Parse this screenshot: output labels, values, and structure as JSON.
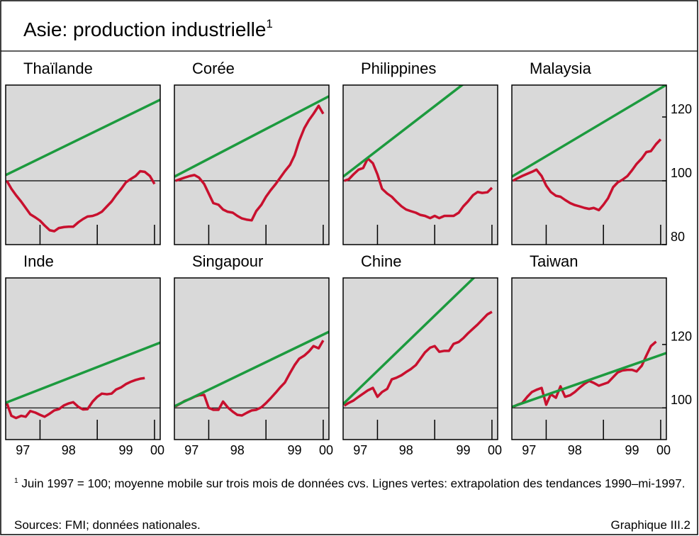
{
  "title": "Asie: production industrielle",
  "title_note": "1",
  "footnote_marker": "1",
  "footnote": "Juin 1997 = 100; moyenne mobile sur trois mois de données cvs. Lignes vertes: extrapolation des tendances 1990–mi-1997.",
  "sources": "Sources: FMI; données nationales.",
  "figure_label": "Graphique III.2",
  "chart_data": [
    {
      "type": "line",
      "title": "Thaïlande",
      "xlim": [
        1997.4,
        2000.1
      ],
      "xticks": [
        1998,
        1999,
        2000
      ],
      "ylim": [
        80,
        130
      ],
      "reference_line": 100,
      "x": [
        1997.42,
        1997.5,
        1997.58,
        1997.67,
        1997.75,
        1997.83,
        1997.92,
        1998.0,
        1998.08,
        1998.17,
        1998.25,
        1998.33,
        1998.42,
        1998.5,
        1998.58,
        1998.67,
        1998.75,
        1998.83,
        1998.92,
        1999.0,
        1999.08,
        1999.17,
        1999.25,
        1999.33,
        1999.42,
        1999.5,
        1999.58,
        1999.67,
        1999.75,
        1999.83,
        1999.92,
        2000.0
      ],
      "series": [
        {
          "color": "#c8102e",
          "values": [
            100,
            97.5,
            95.5,
            93.5,
            91.5,
            89.5,
            88.5,
            87.5,
            86,
            84.5,
            84.2,
            85.2,
            85.5,
            85.6,
            85.6,
            87,
            88,
            88.8,
            89,
            89.5,
            90.3,
            92,
            93.5,
            95.5,
            97.5,
            99.5,
            100.5,
            101.5,
            103,
            102.8,
            101.5,
            99
          ]
        },
        {
          "color": "#1c9a3e",
          "x": [
            1997.4,
            2000.1
          ],
          "values": [
            101.8,
            125.4
          ]
        }
      ]
    },
    {
      "type": "line",
      "title": "Corée",
      "xlim": [
        1997.4,
        2000.1
      ],
      "xticks": [
        1998,
        1999,
        2000
      ],
      "ylim": [
        80,
        130
      ],
      "reference_line": 100,
      "x": [
        1997.42,
        1997.5,
        1997.58,
        1997.67,
        1997.75,
        1997.83,
        1997.92,
        1998.0,
        1998.08,
        1998.17,
        1998.25,
        1998.33,
        1998.42,
        1998.5,
        1998.58,
        1998.67,
        1998.75,
        1998.83,
        1998.92,
        1999.0,
        1999.08,
        1999.17,
        1999.25,
        1999.33,
        1999.42,
        1999.5,
        1999.58,
        1999.67,
        1999.75,
        1999.83,
        1999.92,
        2000.0
      ],
      "series": [
        {
          "color": "#c8102e",
          "values": [
            100,
            100.5,
            101,
            101.5,
            101.8,
            101,
            99,
            96,
            93,
            92.5,
            91,
            90.3,
            90,
            89,
            88.2,
            87.8,
            87.6,
            90.5,
            92.5,
            95,
            97,
            99,
            101,
            103,
            105,
            108,
            112.5,
            116.5,
            119,
            121,
            123.5,
            121
          ]
        },
        {
          "color": "#1c9a3e",
          "x": [
            1997.4,
            2000.1
          ],
          "values": [
            101.3,
            126.5
          ]
        }
      ]
    },
    {
      "type": "line",
      "title": "Philippines",
      "xlim": [
        1997.4,
        2000.1
      ],
      "xticks": [
        1998,
        1999,
        2000
      ],
      "ylim": [
        80,
        130
      ],
      "reference_line": 100,
      "x": [
        1997.42,
        1997.5,
        1997.58,
        1997.67,
        1997.75,
        1997.83,
        1997.92,
        1998.0,
        1998.08,
        1998.17,
        1998.25,
        1998.33,
        1998.42,
        1998.5,
        1998.58,
        1998.67,
        1998.75,
        1998.83,
        1998.92,
        1999.0,
        1999.08,
        1999.17,
        1999.25,
        1999.33,
        1999.42,
        1999.5,
        1999.58,
        1999.67,
        1999.75,
        1999.83,
        1999.92,
        2000.0
      ],
      "series": [
        {
          "color": "#c8102e",
          "values": [
            100,
            100.5,
            102,
            103.5,
            104,
            107,
            105.5,
            102,
            97.5,
            96,
            95,
            93.5,
            92,
            91,
            90.5,
            90,
            89.3,
            89,
            88.3,
            89,
            88.3,
            89,
            89,
            89,
            90,
            92,
            93.5,
            95.5,
            96.5,
            96.2,
            96.4,
            97.8
          ]
        },
        {
          "color": "#1c9a3e",
          "x": [
            1997.4,
            2000.1
          ],
          "values": [
            101.3,
            138.6
          ]
        }
      ]
    },
    {
      "type": "line",
      "title": "Malaysia",
      "xlim": [
        1997.4,
        2000.1
      ],
      "xticks": [
        1998,
        1999,
        2000
      ],
      "ylim": [
        80,
        130
      ],
      "yticks": [
        80,
        100,
        120
      ],
      "reference_line": 100,
      "x": [
        1997.42,
        1997.5,
        1997.58,
        1997.67,
        1997.75,
        1997.83,
        1997.92,
        1998.0,
        1998.08,
        1998.17,
        1998.25,
        1998.33,
        1998.42,
        1998.5,
        1998.58,
        1998.67,
        1998.75,
        1998.83,
        1998.92,
        1999.0,
        1999.08,
        1999.17,
        1999.25,
        1999.33,
        1999.42,
        1999.5,
        1999.58,
        1999.67,
        1999.75,
        1999.83,
        1999.92,
        2000.0
      ],
      "series": [
        {
          "color": "#c8102e",
          "values": [
            100,
            100.8,
            101.5,
            102.2,
            102.8,
            103.5,
            101.5,
            98.5,
            96.5,
            95.3,
            95,
            94,
            93,
            92.4,
            92,
            91.5,
            91.2,
            91.5,
            90.8,
            92.5,
            94.5,
            98,
            99.5,
            100.3,
            101.5,
            103.3,
            105.3,
            107,
            109,
            109.3,
            111.5,
            113
          ]
        },
        {
          "color": "#1c9a3e",
          "x": [
            1997.4,
            2000.1
          ],
          "values": [
            101.3,
            130.1
          ]
        }
      ]
    },
    {
      "type": "line",
      "title": "Inde",
      "xlim": [
        1997.4,
        2000.1
      ],
      "ylim": [
        90,
        141
      ],
      "reference_line": 100,
      "xticks": [
        {
          "value": 1997,
          "label": "97"
        },
        {
          "value": 1998,
          "label": "98"
        },
        {
          "value": 1999,
          "label": "99"
        },
        {
          "value": 2000,
          "label": "00"
        }
      ],
      "x": [
        1997.42,
        1997.5,
        1997.58,
        1997.67,
        1997.75,
        1997.83,
        1997.92,
        1998.0,
        1998.08,
        1998.17,
        1998.25,
        1998.33,
        1998.42,
        1998.5,
        1998.58,
        1998.67,
        1998.75,
        1998.83,
        1998.92,
        1999.0,
        1999.08,
        1999.17,
        1999.25,
        1999.33,
        1999.42,
        1999.5,
        1999.58,
        1999.67,
        1999.75,
        1999.83
      ],
      "series": [
        {
          "color": "#c8102e",
          "values": [
            101.5,
            97.5,
            96.8,
            97.5,
            97.2,
            99,
            98.5,
            97.8,
            97.2,
            98.2,
            99.2,
            99.6,
            100.8,
            101.4,
            101.8,
            100.3,
            99.5,
            99.6,
            102,
            103.5,
            104.5,
            104.3,
            104.5,
            105.8,
            106.5,
            107.5,
            108.2,
            108.8,
            109.2,
            109.4
          ]
        },
        {
          "color": "#1c9a3e",
          "x": [
            1997.4,
            2000.1
          ],
          "values": [
            101.6,
            120.6
          ]
        }
      ]
    },
    {
      "type": "line",
      "title": "Singapour",
      "xlim": [
        1997.4,
        2000.1
      ],
      "ylim": [
        90,
        141
      ],
      "reference_line": 100,
      "xticks": [
        {
          "value": 1997,
          "label": "97"
        },
        {
          "value": 1998,
          "label": "98"
        },
        {
          "value": 1999,
          "label": "99"
        },
        {
          "value": 2000,
          "label": "00"
        }
      ],
      "x": [
        1997.42,
        1997.5,
        1997.58,
        1997.67,
        1997.75,
        1997.83,
        1997.92,
        1998.0,
        1998.08,
        1998.17,
        1998.25,
        1998.33,
        1998.42,
        1998.5,
        1998.58,
        1998.67,
        1998.75,
        1998.83,
        1998.92,
        1999.0,
        1999.08,
        1999.17,
        1999.25,
        1999.33,
        1999.42,
        1999.5,
        1999.58,
        1999.67,
        1999.75,
        1999.83,
        1999.92,
        2000.0
      ],
      "series": [
        {
          "color": "#c8102e",
          "values": [
            100.5,
            101.3,
            102.2,
            102.8,
            103.5,
            104,
            104.1,
            100,
            99.4,
            99.4,
            102,
            100.2,
            98.8,
            97.8,
            97.6,
            98.5,
            99.2,
            99.4,
            100.2,
            101.5,
            103,
            104.8,
            106.5,
            108,
            111,
            113.5,
            115.5,
            116.5,
            117.8,
            119.5,
            118.8,
            121.3
          ]
        },
        {
          "color": "#1c9a3e",
          "x": [
            1997.4,
            2000.1
          ],
          "values": [
            100.5,
            124
          ]
        }
      ]
    },
    {
      "type": "line",
      "title": "Chine",
      "xlim": [
        1997.4,
        2000.1
      ],
      "ylim": [
        90,
        141
      ],
      "reference_line": 100,
      "xticks": [
        {
          "value": 1997,
          "label": "97"
        },
        {
          "value": 1998,
          "label": "98"
        },
        {
          "value": 1999,
          "label": "99"
        },
        {
          "value": 2000,
          "label": "00"
        }
      ],
      "x": [
        1997.42,
        1997.5,
        1997.58,
        1997.67,
        1997.75,
        1997.83,
        1997.92,
        1998.0,
        1998.08,
        1998.17,
        1998.25,
        1998.33,
        1998.42,
        1998.5,
        1998.58,
        1998.67,
        1998.75,
        1998.83,
        1998.92,
        1999.0,
        1999.08,
        1999.17,
        1999.25,
        1999.33,
        1999.42,
        1999.5,
        1999.58,
        1999.67,
        1999.75,
        1999.83,
        1999.92,
        2000.0
      ],
      "series": [
        {
          "color": "#c8102e",
          "values": [
            100.7,
            101.6,
            102.3,
            103.5,
            104.5,
            105.5,
            106.3,
            103.5,
            105,
            106,
            109,
            109.5,
            110.3,
            111.3,
            112.2,
            113.5,
            115.5,
            117.5,
            119,
            119.5,
            117.7,
            118,
            118,
            120.2,
            120.8,
            122,
            123.5,
            125,
            126.3,
            127.8,
            129.5,
            130.3
          ]
        },
        {
          "color": "#1c9a3e",
          "x": [
            1997.4,
            2000.1
          ],
          "values": [
            101.2,
            148.3
          ]
        }
      ]
    },
    {
      "type": "line",
      "title": "Taiwan",
      "xlim": [
        1997.4,
        2000.1
      ],
      "ylim": [
        90,
        141
      ],
      "yticks": [
        100,
        120
      ],
      "reference_line": 100,
      "xticks": [
        {
          "value": 1997,
          "label": "97"
        },
        {
          "value": 1998,
          "label": "98"
        },
        {
          "value": 1999,
          "label": "99"
        },
        {
          "value": 2000,
          "label": "00"
        }
      ],
      "x": [
        1997.42,
        1997.5,
        1997.58,
        1997.67,
        1997.75,
        1997.83,
        1997.92,
        1998.0,
        1998.08,
        1998.17,
        1998.25,
        1998.33,
        1998.42,
        1998.5,
        1998.58,
        1998.67,
        1998.75,
        1998.83,
        1998.92,
        1999.0,
        1999.08,
        1999.17,
        1999.25,
        1999.33,
        1999.42,
        1999.5,
        1999.58,
        1999.67,
        1999.75,
        1999.83,
        1999.92
      ],
      "series": [
        {
          "color": "#c8102e",
          "values": [
            100.3,
            101,
            101.5,
            103.5,
            105,
            105.7,
            106.3,
            101,
            104.3,
            103.2,
            106.8,
            103.5,
            104,
            105,
            106.3,
            107.6,
            108.5,
            107.9,
            107,
            107.5,
            108,
            109.7,
            111.2,
            111.8,
            112,
            112,
            111.5,
            113.3,
            116.5,
            119.5,
            120.9
          ]
        },
        {
          "color": "#1c9a3e",
          "x": [
            1997.4,
            2000.1
          ],
          "values": [
            100.3,
            117.3
          ]
        }
      ]
    }
  ]
}
